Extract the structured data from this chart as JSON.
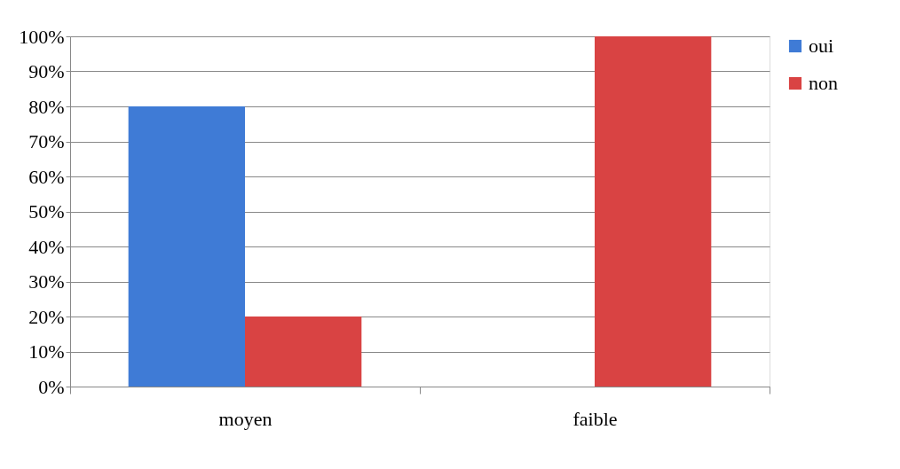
{
  "chart_data": {
    "type": "bar",
    "categories": [
      "moyen",
      "faible"
    ],
    "series": [
      {
        "name": "oui",
        "color": "#3f7bd6",
        "values": [
          80,
          0
        ]
      },
      {
        "name": "non",
        "color": "#d94343",
        "values": [
          20,
          100
        ]
      }
    ],
    "ylim": [
      0,
      100
    ],
    "yticks": [
      {
        "value": 0,
        "label": "0%"
      },
      {
        "value": 10,
        "label": "10%"
      },
      {
        "value": 20,
        "label": "20%"
      },
      {
        "value": 30,
        "label": "30%"
      },
      {
        "value": 40,
        "label": "40%"
      },
      {
        "value": 50,
        "label": "50%"
      },
      {
        "value": 60,
        "label": "60%"
      },
      {
        "value": 70,
        "label": "70%"
      },
      {
        "value": 80,
        "label": "80%"
      },
      {
        "value": 90,
        "label": "90%"
      },
      {
        "value": 100,
        "label": "100%"
      }
    ],
    "grid": "y",
    "legend": "right"
  }
}
